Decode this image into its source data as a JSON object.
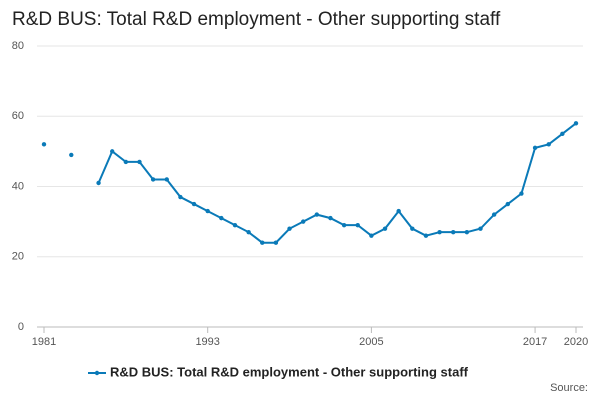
{
  "chart_data": {
    "type": "line",
    "title": "R&D BUS: Total R&D employment - Other supporting staff",
    "x": [
      1981,
      1982,
      1983,
      1984,
      1985,
      1986,
      1987,
      1988,
      1989,
      1990,
      1991,
      1992,
      1993,
      1994,
      1995,
      1996,
      1997,
      1998,
      1999,
      2000,
      2001,
      2002,
      2003,
      2004,
      2005,
      2006,
      2007,
      2008,
      2009,
      2010,
      2011,
      2012,
      2013,
      2014,
      2015,
      2016,
      2017,
      2018,
      2019,
      2020
    ],
    "series": [
      {
        "name": "R&D BUS: Total R&D employment - Other supporting staff",
        "color": "#0a7ab8",
        "values": [
          52,
          null,
          49,
          null,
          41,
          50,
          47,
          47,
          42,
          42,
          37,
          35,
          33,
          31,
          29,
          27,
          24,
          24,
          28,
          30,
          32,
          31,
          29,
          29,
          26,
          28,
          33,
          28,
          26,
          27,
          27,
          27,
          28,
          32,
          35,
          38,
          51,
          52,
          55,
          58
        ]
      }
    ],
    "xlim": [
      1981,
      2020
    ],
    "xticks": [
      1981,
      1993,
      2005,
      2017,
      2020
    ],
    "ylim": [
      0,
      80
    ],
    "yticks": [
      0,
      20,
      40,
      60,
      80
    ],
    "grid": true,
    "source": "Source:"
  }
}
